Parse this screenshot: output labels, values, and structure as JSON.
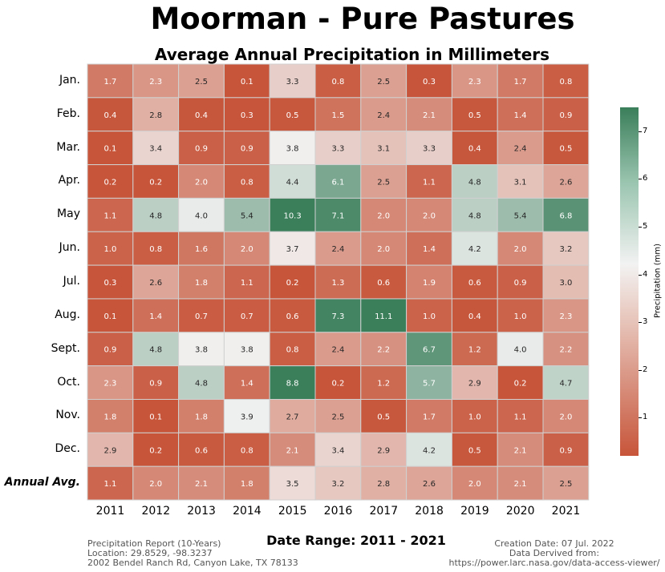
{
  "title": "Moorman - Pure Pastures",
  "subtitle": "Average Annual Precipitation in Millimeters",
  "x_caption": "Date Range: 2011 - 2021",
  "footer_left": [
    "Precipitation Report (10-Years)",
    "Location: 29.8529, -98.3237",
    "2002 Bendel Ranch Rd, Canyon Lake, TX 78133"
  ],
  "footer_right": [
    "Creation Date: 07 Jul. 2022",
    "Data Dervived from:",
    "https://power.larc.nasa.gov/data-access-viewer/"
  ],
  "colorbar": {
    "label": "Precipitation (mm)",
    "ticks": [
      "1",
      "2",
      "3",
      "4",
      "5",
      "6",
      "7"
    ],
    "colors": [
      "#c7553a",
      "#f2f2f2",
      "#3a7e5a"
    ]
  },
  "chart_data": {
    "type": "heatmap",
    "title": "Average Annual Precipitation in Millimeters",
    "xlabel": "Date Range: 2011 - 2021",
    "colorbar_label": "Precipitation (mm)",
    "vmin": 0.2,
    "vmax": 7.5,
    "x": [
      "2011",
      "2012",
      "2013",
      "2014",
      "2015",
      "2016",
      "2017",
      "2018",
      "2019",
      "2020",
      "2021"
    ],
    "y": [
      "Jan.",
      "Feb.",
      "Mar.",
      "Apr.",
      "May",
      "Jun.",
      "Jul.",
      "Aug.",
      "Sept.",
      "Oct.",
      "Nov.",
      "Dec.",
      "Annual Avg."
    ],
    "values": [
      [
        1.7,
        2.3,
        2.5,
        0.1,
        3.3,
        0.8,
        2.5,
        0.3,
        2.3,
        1.7,
        0.8
      ],
      [
        0.4,
        2.8,
        0.4,
        0.3,
        0.5,
        1.5,
        2.4,
        2.1,
        0.5,
        1.4,
        0.9
      ],
      [
        0.1,
        3.4,
        0.9,
        0.9,
        3.8,
        3.3,
        3.1,
        3.3,
        0.4,
        2.4,
        0.5
      ],
      [
        0.2,
        0.2,
        2.0,
        0.8,
        4.4,
        6.1,
        2.5,
        1.1,
        4.8,
        3.1,
        2.6
      ],
      [
        1.1,
        4.8,
        4.0,
        5.4,
        10.3,
        7.1,
        2.0,
        2.0,
        4.8,
        5.4,
        6.8
      ],
      [
        1.0,
        0.8,
        1.6,
        2.0,
        3.7,
        2.4,
        2.0,
        1.4,
        4.2,
        2.0,
        3.2
      ],
      [
        0.3,
        2.6,
        1.8,
        1.1,
        0.2,
        1.3,
        0.6,
        1.9,
        0.6,
        0.9,
        3.0
      ],
      [
        0.1,
        1.4,
        0.7,
        0.7,
        0.6,
        7.3,
        11.1,
        1.0,
        0.4,
        1.0,
        2.3
      ],
      [
        0.9,
        4.8,
        3.8,
        3.8,
        0.8,
        2.4,
        2.2,
        6.7,
        1.2,
        4.0,
        2.2
      ],
      [
        2.3,
        0.9,
        4.8,
        1.4,
        8.8,
        0.2,
        1.2,
        5.7,
        2.9,
        0.2,
        4.7
      ],
      [
        1.8,
        0.1,
        1.8,
        3.9,
        2.7,
        2.5,
        0.5,
        1.7,
        1.0,
        1.1,
        2.0
      ],
      [
        2.9,
        0.2,
        0.6,
        0.8,
        2.1,
        3.4,
        2.9,
        4.2,
        0.5,
        2.1,
        0.9
      ],
      [
        1.1,
        2.0,
        2.1,
        1.8,
        3.5,
        3.2,
        2.8,
        2.6,
        2.0,
        2.1,
        2.5
      ]
    ]
  }
}
